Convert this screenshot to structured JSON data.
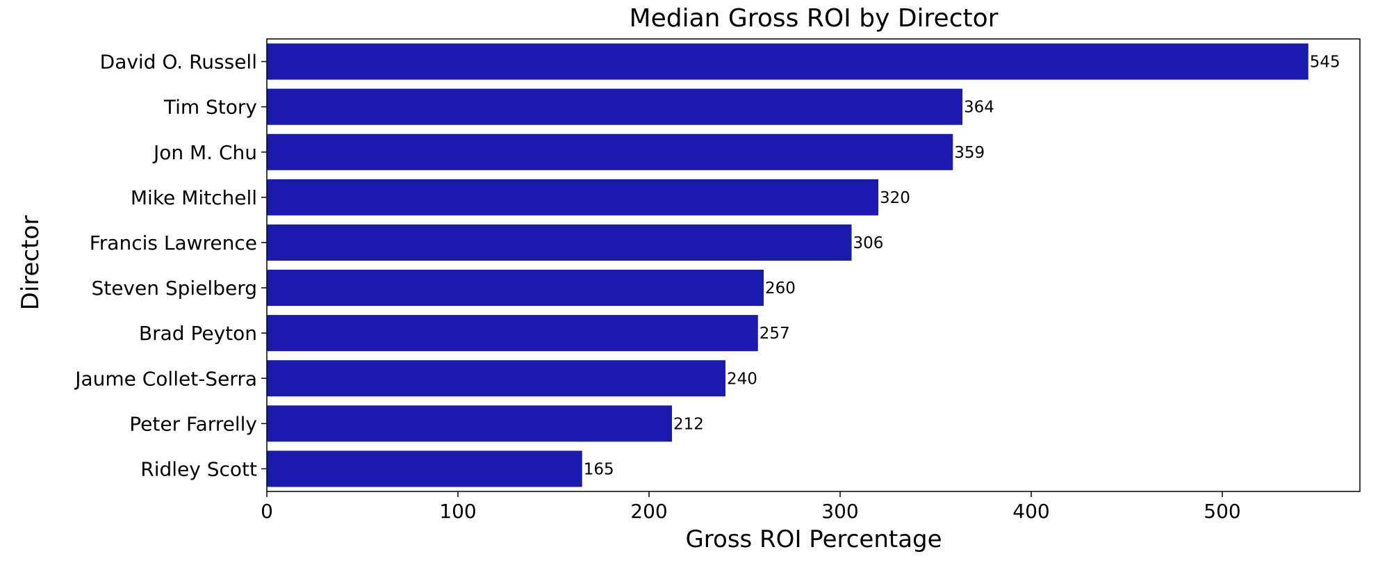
{
  "chart_data": {
    "type": "bar",
    "orientation": "horizontal",
    "title": "Median Gross ROI by Director",
    "xlabel": "Gross ROI Percentage",
    "ylabel": "Director",
    "categories": [
      "David O. Russell",
      "Tim Story",
      "Jon M. Chu",
      "Mike Mitchell",
      "Francis Lawrence",
      "Steven Spielberg",
      "Brad Peyton",
      "Jaume Collet-Serra",
      "Peter Farrelly",
      "Ridley Scott"
    ],
    "values": [
      545,
      364,
      359,
      320,
      306,
      260,
      257,
      240,
      212,
      165
    ],
    "data_labels": [
      "545",
      "364",
      "359",
      "320",
      "306",
      "260",
      "257",
      "240",
      "212",
      "165"
    ],
    "xticks": [
      0,
      100,
      200,
      300,
      400,
      500
    ],
    "xlim": [
      0,
      572
    ],
    "grid": false,
    "legend": "none",
    "bar_color": "#1a1aae"
  }
}
